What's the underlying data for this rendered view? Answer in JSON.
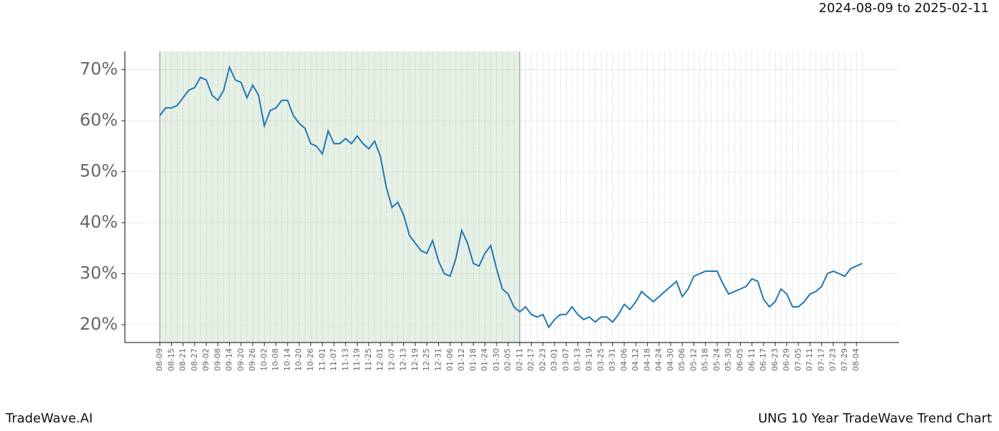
{
  "header": {
    "date_range": "2024-08-09 to 2025-02-11"
  },
  "footer": {
    "brand": "TradeWave.AI",
    "caption": "UNG 10 Year TradeWave Trend Chart"
  },
  "chart_data": {
    "type": "line",
    "categories": [
      "08-09",
      null,
      "08-15",
      null,
      "08-21",
      null,
      "08-27",
      null,
      "09-02",
      null,
      "09-08",
      null,
      "09-14",
      null,
      "09-20",
      null,
      "09-26",
      null,
      "10-02",
      null,
      "10-08",
      null,
      "10-14",
      null,
      "10-20",
      null,
      "10-26",
      null,
      "11-01",
      null,
      "11-07",
      null,
      "11-13",
      null,
      "11-19",
      null,
      "11-25",
      null,
      "12-01",
      null,
      "12-07",
      null,
      "12-13",
      null,
      "12-19",
      null,
      "12-25",
      null,
      "12-31",
      null,
      "01-06",
      null,
      "01-12",
      null,
      "01-18",
      null,
      "01-24",
      null,
      "01-30",
      null,
      "02-05",
      null,
      "02-11",
      null,
      "02-17",
      null,
      "02-23",
      null,
      "03-01",
      null,
      "03-07",
      null,
      "03-13",
      null,
      "03-19",
      null,
      "03-25",
      null,
      "03-31",
      null,
      "04-06",
      null,
      "04-12",
      null,
      "04-18",
      null,
      "04-24",
      null,
      "04-30",
      null,
      "05-06",
      null,
      "05-12",
      null,
      "05-18",
      null,
      "05-24",
      null,
      "05-30",
      null,
      "06-05",
      null,
      "06-11",
      null,
      "06-17",
      null,
      "06-23",
      null,
      "06-29",
      null,
      "07-05",
      null,
      "07-11",
      null,
      "07-17",
      null,
      "07-23",
      null,
      "07-29",
      null,
      "08-04",
      null
    ],
    "series": [
      {
        "color": "#1f77b4",
        "values": [
          61,
          62.5,
          62.5,
          63,
          64.5,
          66,
          66.5,
          68.5,
          68,
          65,
          64,
          66,
          70.5,
          68,
          67.5,
          64.5,
          67,
          65,
          59,
          62,
          62.5,
          64,
          64,
          61,
          59.5,
          58.5,
          55.5,
          55,
          53.5,
          58,
          55.5,
          55.5,
          56.5,
          55.5,
          57,
          55.5,
          54.5,
          56,
          53,
          47,
          43,
          44,
          41.5,
          37.5,
          36,
          34.5,
          34,
          36.5,
          32.5,
          30,
          29.5,
          33,
          38.5,
          36,
          32,
          31.5,
          34,
          35.5,
          31,
          27,
          26,
          23.5,
          22.5,
          23.5,
          22,
          21.5,
          22,
          19.5,
          21,
          22,
          22,
          23.5,
          22,
          21,
          21.5,
          20.5,
          21.5,
          21.5,
          20.5,
          22,
          24,
          23,
          24.5,
          26.5,
          25.5,
          24.5,
          25.5,
          26.5,
          27.5,
          28.5,
          25.5,
          27,
          29.5,
          30,
          30.5,
          30.5,
          30.5,
          28,
          26,
          26.5,
          27,
          27.5,
          29,
          28.5,
          25,
          23.5,
          24.5,
          27,
          26,
          23.5,
          23.5,
          24.5,
          26,
          26.5,
          27.5,
          30,
          30.5,
          30,
          29.5,
          31,
          31.5,
          32
        ]
      }
    ],
    "ylim": [
      16.5,
      73.6
    ],
    "yticks": [
      {
        "value": 20,
        "label": "20%"
      },
      {
        "value": 30,
        "label": "30%"
      },
      {
        "value": 40,
        "label": "40%"
      },
      {
        "value": 50,
        "label": "50%"
      },
      {
        "value": 60,
        "label": "60%"
      },
      {
        "value": 70,
        "label": "70%"
      }
    ],
    "grid": true,
    "shade": {
      "from": "08-09",
      "to": "02-11",
      "color": "#e6f1e6"
    }
  }
}
